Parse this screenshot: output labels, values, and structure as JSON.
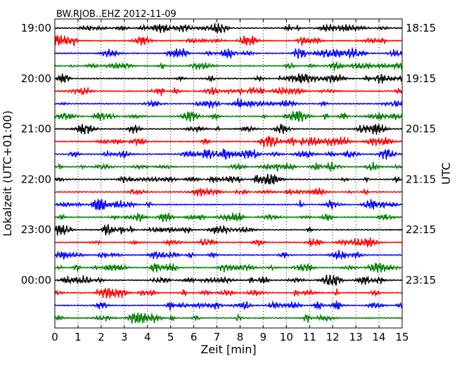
{
  "chart_data": {
    "type": "line",
    "title": "BW.RJOB..EHZ 2012-11-09",
    "xlabel": "Zeit  [min]",
    "ylabel_left": "Lokalzeit (UTC+01:00)",
    "ylabel_right": "UTC",
    "xlim": [
      0,
      15
    ],
    "x_ticks": [
      "0",
      "1",
      "2",
      "3",
      "4",
      "5",
      "6",
      "7",
      "8",
      "9",
      "10",
      "11",
      "12",
      "13",
      "14",
      "15"
    ],
    "left_ticks": [
      "19:00",
      "20:00",
      "21:00",
      "22:00",
      "23:00",
      "00:00"
    ],
    "right_ticks": [
      "18:15",
      "19:15",
      "20:15",
      "21:15",
      "22:15",
      "23:15"
    ],
    "tick_every_rows": 4,
    "row_count": 24,
    "row_minutes": 15,
    "vertical_grid": "dotted",
    "colors": [
      "#000000",
      "#ff0000",
      "#0000ff",
      "#008000"
    ]
  }
}
